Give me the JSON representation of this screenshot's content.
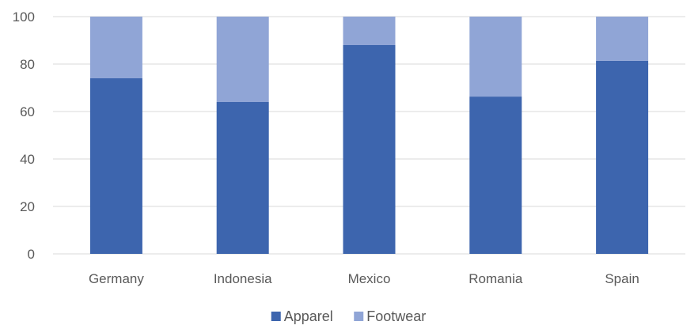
{
  "chart_data": {
    "type": "bar",
    "stacked": true,
    "categories": [
      "Germany",
      "Indonesia",
      "Mexico",
      "Romania",
      "Spain"
    ],
    "series": [
      {
        "name": "Apparel",
        "values": [
          74,
          64,
          88,
          66.3,
          81.4
        ],
        "color": "#3d65ae"
      },
      {
        "name": "Footwear",
        "values": [
          26,
          36,
          12,
          33.7,
          18.6
        ],
        "color": "#90a5d6"
      }
    ],
    "ylim": [
      0,
      100
    ],
    "yticks": [
      0,
      20,
      40,
      60,
      80,
      100
    ],
    "ytick_labels": [
      "0",
      "20",
      "40",
      "60",
      "80",
      "100"
    ],
    "grid": true,
    "gridline_color": "#d9d9d9",
    "legend_placement": "bottom"
  }
}
